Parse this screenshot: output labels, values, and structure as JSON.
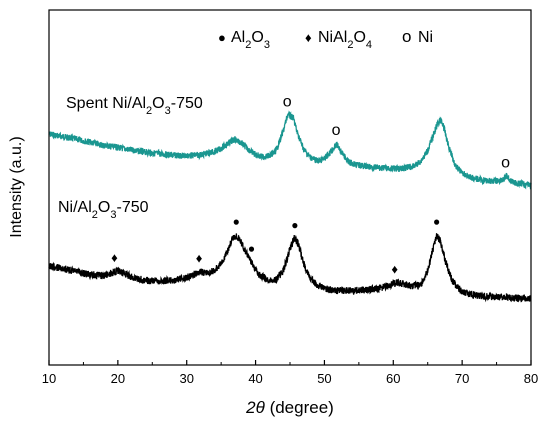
{
  "chart_data": {
    "type": "line",
    "xlabel_italic": "2θ",
    "xlabel_rest": " (degree)",
    "ylabel": "Intensity (a.u.)",
    "xlim": [
      10,
      80
    ],
    "xticks": [
      10,
      20,
      30,
      40,
      50,
      60,
      70,
      80
    ],
    "y_ticks_shown": false,
    "grid": false,
    "colors": {
      "spent": "#1a9690",
      "fresh": "#000000",
      "axis": "#000000"
    },
    "legend": {
      "position": "top-center",
      "entries": [
        {
          "marker": "dot",
          "symbol": "●",
          "label_parts": [
            "Al",
            "2",
            "O",
            "3"
          ]
        },
        {
          "marker": "diamond",
          "symbol": "♦",
          "label_parts": [
            "NiAl",
            "2",
            "O",
            "4"
          ]
        },
        {
          "marker": "circle",
          "symbol": "o",
          "label_parts": [
            "Ni"
          ]
        }
      ]
    },
    "series": [
      {
        "name": "Spent Ni/Al2O3-750",
        "name_parts": [
          "Spent Ni/Al",
          "2",
          "O",
          "3",
          "-750"
        ],
        "color": "#1a9690",
        "x": [
          10,
          12,
          14,
          16,
          18,
          20,
          22,
          24,
          26,
          28,
          30,
          32,
          34,
          35,
          36,
          37,
          38,
          39,
          40,
          41,
          42,
          43,
          44,
          44.7,
          45.5,
          46,
          47,
          48,
          49,
          50,
          51,
          51.8,
          52.6,
          53.5,
          55,
          57,
          59,
          61,
          63,
          64,
          65,
          66,
          66.5,
          67,
          67.5,
          68,
          69,
          70,
          71,
          72,
          73,
          74,
          75,
          76,
          76.5,
          77,
          78,
          79,
          80
        ],
        "y": [
          1.0,
          0.95,
          0.9,
          0.84,
          0.78,
          0.74,
          0.69,
          0.65,
          0.62,
          0.59,
          0.58,
          0.6,
          0.66,
          0.72,
          0.82,
          0.9,
          0.82,
          0.7,
          0.6,
          0.56,
          0.58,
          0.68,
          1.05,
          1.38,
          1.3,
          1.05,
          0.7,
          0.55,
          0.48,
          0.52,
          0.68,
          0.8,
          0.62,
          0.46,
          0.4,
          0.36,
          0.34,
          0.33,
          0.38,
          0.48,
          0.68,
          1.05,
          1.22,
          1.26,
          1.05,
          0.78,
          0.4,
          0.25,
          0.18,
          0.14,
          0.11,
          0.1,
          0.1,
          0.12,
          0.2,
          0.1,
          0.05,
          0.03,
          0.02
        ]
      },
      {
        "name": "Ni/Al2O3-750",
        "name_parts": [
          "Ni/Al",
          "2",
          "O",
          "3",
          "-750"
        ],
        "color": "#000000",
        "x": [
          10,
          12,
          14,
          16,
          18,
          19,
          20,
          21,
          22,
          24,
          26,
          28,
          30,
          31,
          32,
          33,
          34,
          35,
          36,
          36.7,
          37.2,
          37.8,
          38.5,
          39.5,
          40.5,
          42,
          43,
          44,
          45,
          45.6,
          46.2,
          47,
          48,
          49,
          50,
          52,
          54,
          56,
          58,
          59.5,
          60.5,
          61.5,
          62.5,
          64,
          65,
          65.8,
          66.3,
          66.8,
          67.5,
          68.5,
          70,
          72,
          74,
          76,
          78,
          80
        ],
        "y": [
          0.4,
          0.35,
          0.28,
          0.22,
          0.2,
          0.25,
          0.3,
          0.24,
          0.17,
          0.1,
          0.08,
          0.1,
          0.16,
          0.22,
          0.28,
          0.26,
          0.3,
          0.45,
          0.75,
          1.0,
          1.05,
          0.95,
          0.72,
          0.45,
          0.22,
          0.1,
          0.12,
          0.3,
          0.75,
          1.0,
          0.88,
          0.45,
          0.12,
          0.0,
          -0.08,
          -0.12,
          -0.12,
          -0.1,
          -0.07,
          0.0,
          0.05,
          0.02,
          -0.02,
          0.0,
          0.3,
          0.8,
          1.05,
          0.95,
          0.55,
          0.1,
          -0.15,
          -0.22,
          -0.25,
          -0.26,
          -0.28,
          -0.28
        ]
      }
    ],
    "annotations": [
      {
        "series": "Spent Ni/Al2O3-750",
        "x": 44.6,
        "symbol": "o"
      },
      {
        "series": "Spent Ni/Al2O3-750",
        "x": 51.7,
        "symbol": "o"
      },
      {
        "series": "Spent Ni/Al2O3-750",
        "x": 76.3,
        "symbol": "o"
      },
      {
        "series": "Ni/Al2O3-750",
        "x": 19.5,
        "symbol": "♦"
      },
      {
        "series": "Ni/Al2O3-750",
        "x": 31.8,
        "symbol": "♦"
      },
      {
        "series": "Ni/Al2O3-750",
        "x": 37.2,
        "symbol": "●"
      },
      {
        "series": "Ni/Al2O3-750",
        "x": 39.4,
        "symbol": "●"
      },
      {
        "series": "Ni/Al2O3-750",
        "x": 45.7,
        "symbol": "●"
      },
      {
        "series": "Ni/Al2O3-750",
        "x": 60.2,
        "symbol": "♦"
      },
      {
        "series": "Ni/Al2O3-750",
        "x": 66.3,
        "symbol": "●"
      }
    ]
  }
}
